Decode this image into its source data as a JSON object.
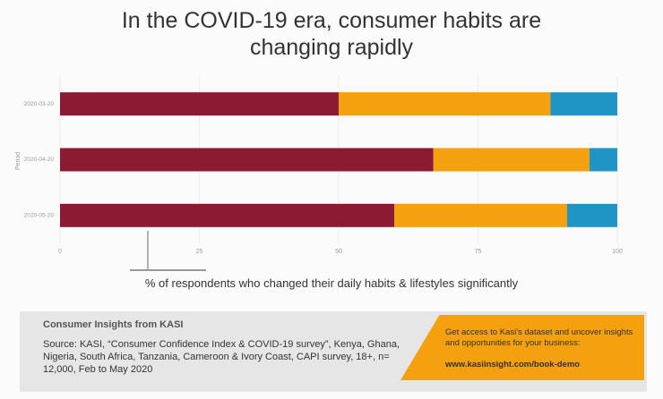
{
  "chart_data": {
    "type": "stacked-barh",
    "title": "In the COVID-19 era, consumer habits are changing rapidly",
    "categories": [
      "2020-03-20",
      "2020-04-20",
      "2020-05-20"
    ],
    "series": [
      {
        "color": "#8c1a33",
        "values": [
          50,
          67,
          60
        ]
      },
      {
        "color": "#f5a00e",
        "values": [
          38,
          28,
          31
        ]
      },
      {
        "color": "#1f95c6",
        "values": [
          12,
          5,
          9
        ]
      }
    ],
    "xlim": [
      0,
      100
    ],
    "xticks": [
      0,
      25,
      50,
      75,
      100
    ],
    "grid": true,
    "ylabel": "Period",
    "xlabel": "% of respondents who changed their daily habits & lifestyles significantly"
  },
  "footer": {
    "heading": "Consumer Insights from KASI",
    "source": "Source: KASI, “Consumer Confidence Index & COVID-19 survey”, Kenya, Ghana, Nigeria, South Africa, Tanzania, Cameroon & Ivory Coast, CAPI survey, 18+, n= 12,000, Feb to May 2020",
    "cta": "Get access to Kasi's dataset and uncover insights and opportunities for your business:",
    "link": "www.kasiinsight.com/book-demo"
  }
}
